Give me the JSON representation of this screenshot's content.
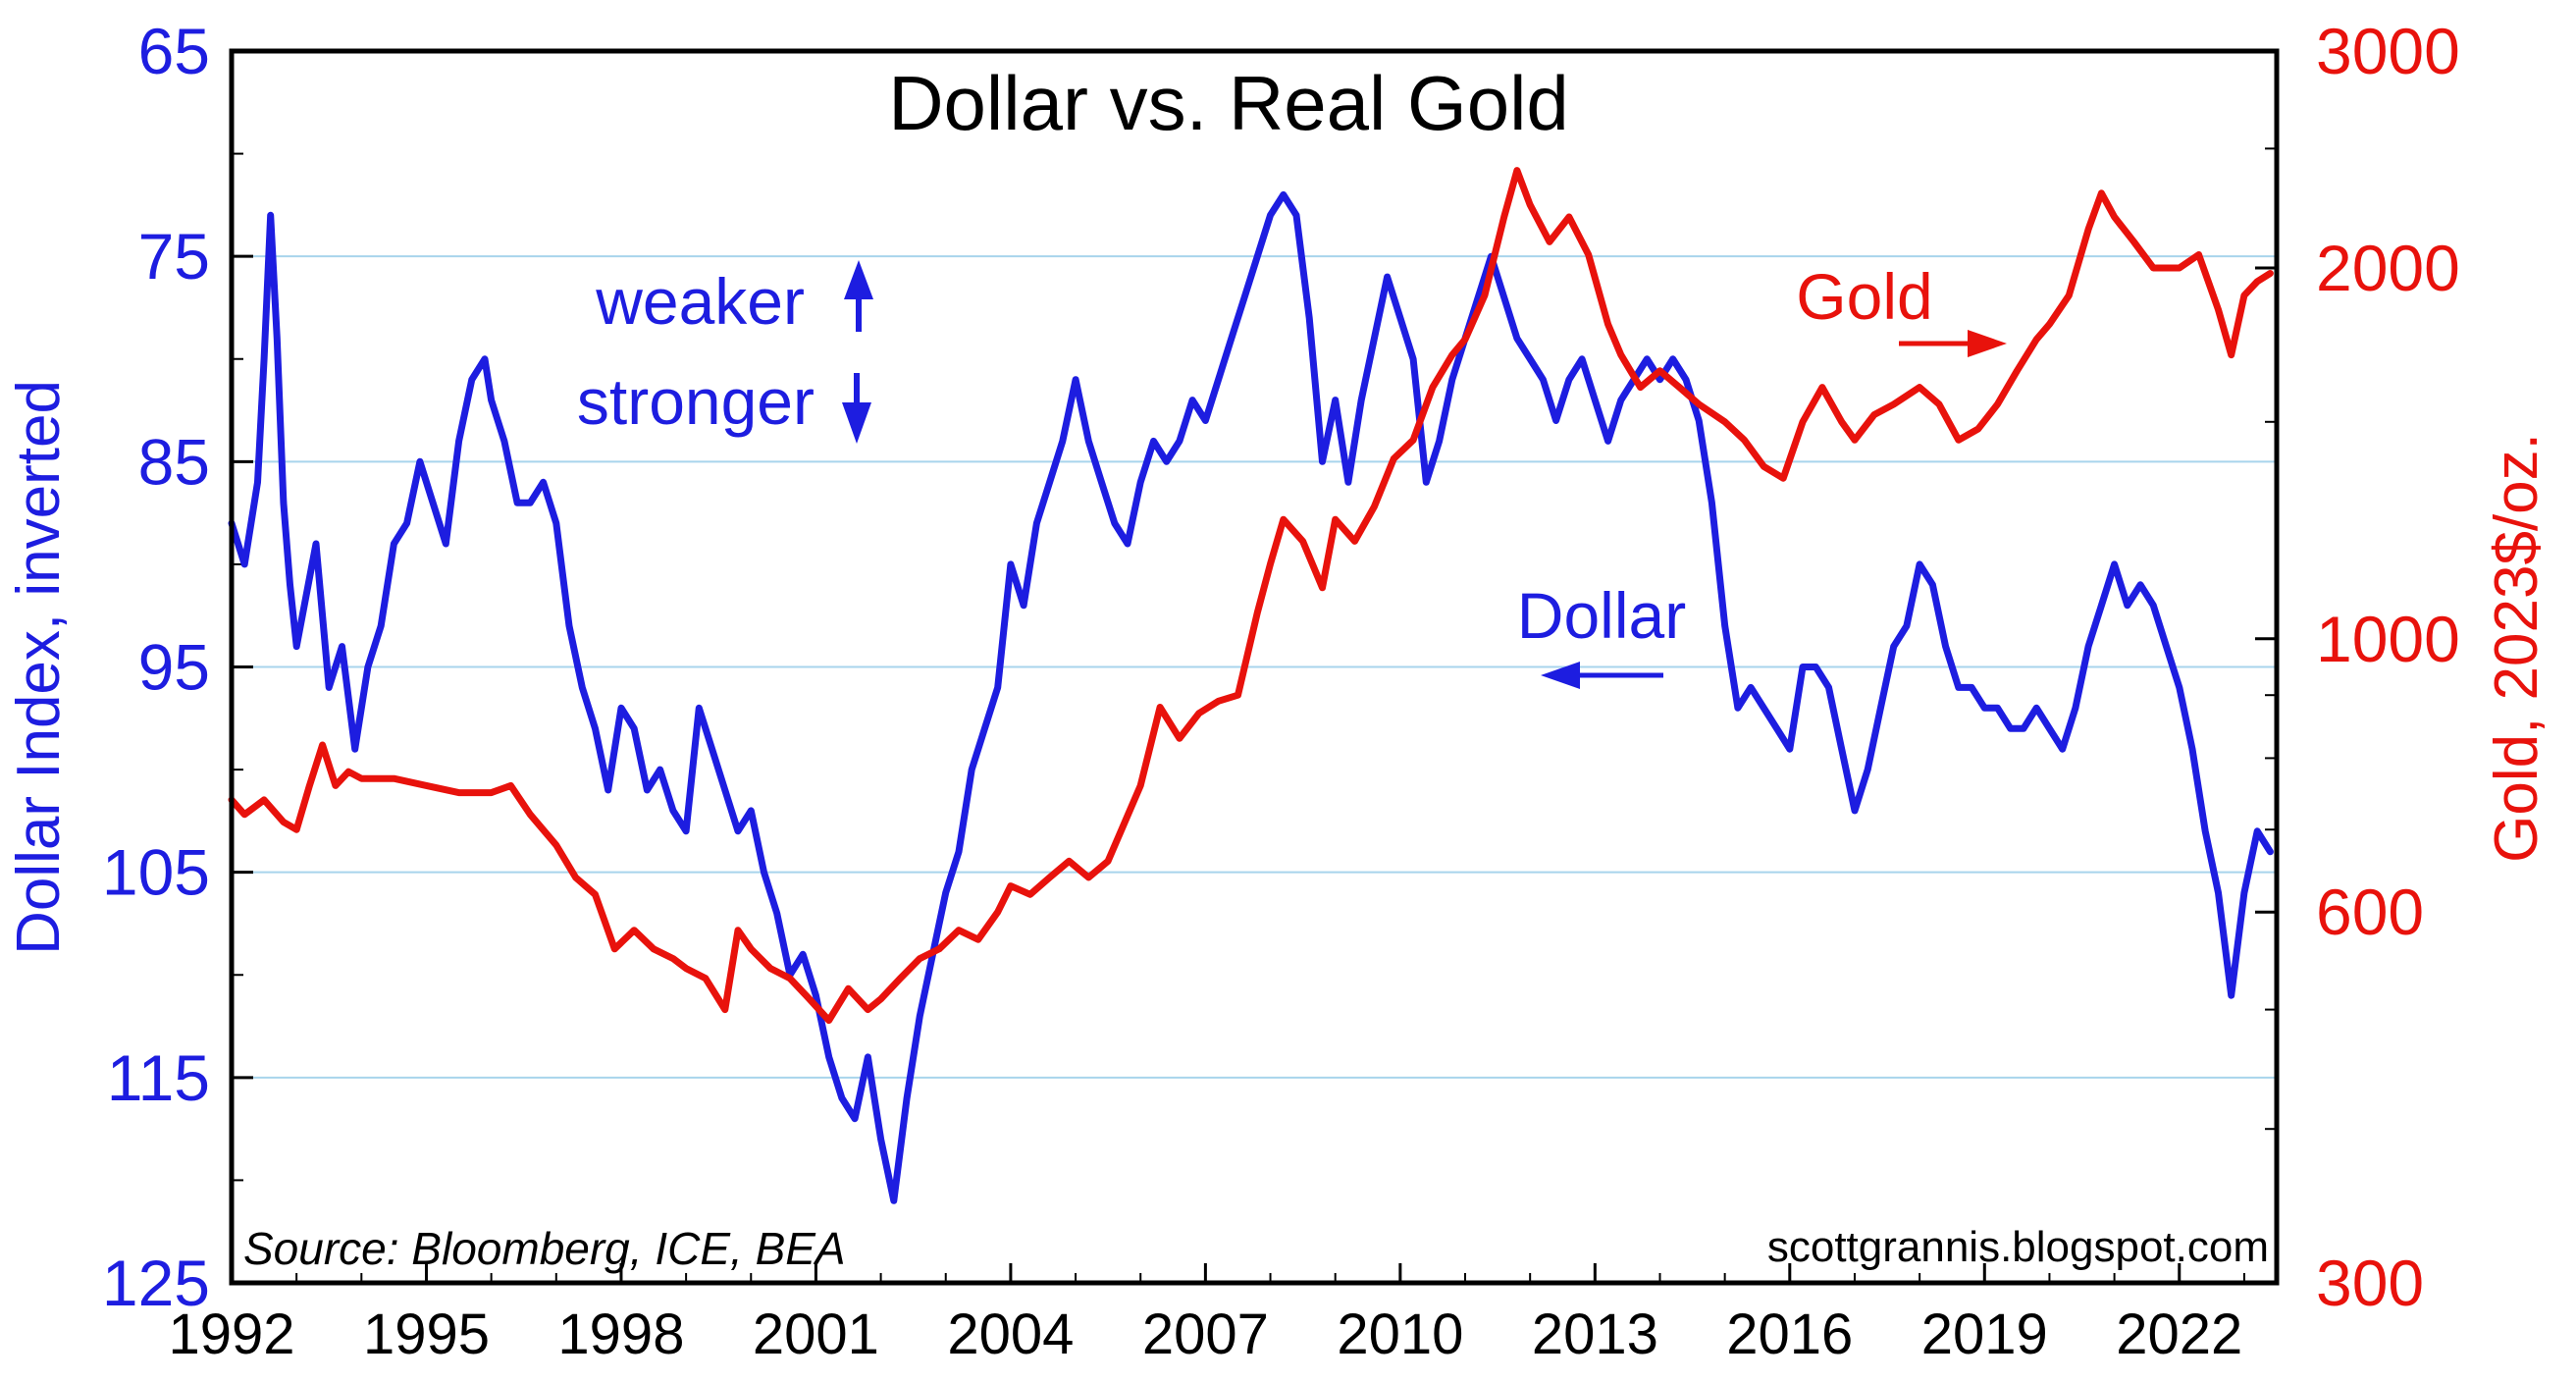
{
  "chart_data": {
    "type": "line",
    "title": "Dollar vs. Real Gold",
    "x_axis": {
      "range": [
        1992,
        2023.5
      ],
      "tick_labels": [
        "1992",
        "1995",
        "1998",
        "2001",
        "2004",
        "2007",
        "2010",
        "2013",
        "2016",
        "2019",
        "2022"
      ]
    },
    "left_axis": {
      "label": "Dollar Index, inverted",
      "inverted": true,
      "range": [
        65,
        125
      ],
      "tick_labels": [
        "65",
        "75",
        "85",
        "95",
        "105",
        "115",
        "125"
      ],
      "color": "#1d1de0"
    },
    "right_axis": {
      "label": "Gold, 2023$/oz.",
      "scale": "log",
      "range": [
        300,
        3000
      ],
      "tick_labels": [
        "3000",
        "2000",
        "1000",
        "600",
        "300"
      ],
      "color": "#e8120c"
    },
    "grid": "horizontal",
    "annotations": {
      "weaker": "weaker",
      "stronger": "stronger",
      "dollar": "Dollar",
      "gold": "Gold"
    },
    "source": "Source: Bloomberg, ICE, BEA",
    "credit": "scottgrannis.blogspot.com",
    "series": [
      {
        "name": "Dollar",
        "axis": "left",
        "color": "#1d1de0",
        "points": [
          [
            1992.0,
            88
          ],
          [
            1992.2,
            90
          ],
          [
            1992.4,
            86
          ],
          [
            1992.5,
            80
          ],
          [
            1992.6,
            73
          ],
          [
            1992.7,
            79
          ],
          [
            1992.8,
            87
          ],
          [
            1992.9,
            91
          ],
          [
            1993.0,
            94
          ],
          [
            1993.3,
            89
          ],
          [
            1993.5,
            96
          ],
          [
            1993.7,
            94
          ],
          [
            1993.9,
            99
          ],
          [
            1994.1,
            95
          ],
          [
            1994.3,
            93
          ],
          [
            1994.5,
            89
          ],
          [
            1994.7,
            88
          ],
          [
            1994.9,
            85
          ],
          [
            1995.1,
            87
          ],
          [
            1995.3,
            89
          ],
          [
            1995.5,
            84
          ],
          [
            1995.7,
            81
          ],
          [
            1995.9,
            80
          ],
          [
            1996.0,
            82
          ],
          [
            1996.2,
            84
          ],
          [
            1996.4,
            87
          ],
          [
            1996.6,
            87
          ],
          [
            1996.8,
            86
          ],
          [
            1997.0,
            88
          ],
          [
            1997.2,
            93
          ],
          [
            1997.4,
            96
          ],
          [
            1997.6,
            98
          ],
          [
            1997.8,
            101
          ],
          [
            1998.0,
            97
          ],
          [
            1998.2,
            98
          ],
          [
            1998.4,
            101
          ],
          [
            1998.6,
            100
          ],
          [
            1998.8,
            102
          ],
          [
            1999.0,
            103
          ],
          [
            1999.2,
            97
          ],
          [
            1999.4,
            99
          ],
          [
            1999.6,
            101
          ],
          [
            1999.8,
            103
          ],
          [
            2000.0,
            102
          ],
          [
            2000.2,
            105
          ],
          [
            2000.4,
            107
          ],
          [
            2000.6,
            110
          ],
          [
            2000.8,
            109
          ],
          [
            2001.0,
            111
          ],
          [
            2001.2,
            114
          ],
          [
            2001.4,
            116
          ],
          [
            2001.6,
            117
          ],
          [
            2001.8,
            114
          ],
          [
            2002.0,
            118
          ],
          [
            2002.2,
            121
          ],
          [
            2002.4,
            116
          ],
          [
            2002.6,
            112
          ],
          [
            2002.8,
            109
          ],
          [
            2003.0,
            106
          ],
          [
            2003.2,
            104
          ],
          [
            2003.4,
            100
          ],
          [
            2003.6,
            98
          ],
          [
            2003.8,
            96
          ],
          [
            2004.0,
            90
          ],
          [
            2004.2,
            92
          ],
          [
            2004.4,
            88
          ],
          [
            2004.6,
            86
          ],
          [
            2004.8,
            84
          ],
          [
            2005.0,
            81
          ],
          [
            2005.2,
            84
          ],
          [
            2005.4,
            86
          ],
          [
            2005.6,
            88
          ],
          [
            2005.8,
            89
          ],
          [
            2006.0,
            86
          ],
          [
            2006.2,
            84
          ],
          [
            2006.4,
            85
          ],
          [
            2006.6,
            84
          ],
          [
            2006.8,
            82
          ],
          [
            2007.0,
            83
          ],
          [
            2007.2,
            81
          ],
          [
            2007.4,
            79
          ],
          [
            2007.6,
            77
          ],
          [
            2007.8,
            75
          ],
          [
            2008.0,
            73
          ],
          [
            2008.2,
            72
          ],
          [
            2008.4,
            73
          ],
          [
            2008.6,
            78
          ],
          [
            2008.8,
            85
          ],
          [
            2009.0,
            82
          ],
          [
            2009.2,
            86
          ],
          [
            2009.4,
            82
          ],
          [
            2009.6,
            79
          ],
          [
            2009.8,
            76
          ],
          [
            2010.0,
            78
          ],
          [
            2010.2,
            80
          ],
          [
            2010.4,
            86
          ],
          [
            2010.6,
            84
          ],
          [
            2010.8,
            81
          ],
          [
            2011.0,
            79
          ],
          [
            2011.2,
            77
          ],
          [
            2011.4,
            75
          ],
          [
            2011.6,
            77
          ],
          [
            2011.8,
            79
          ],
          [
            2012.0,
            80
          ],
          [
            2012.2,
            81
          ],
          [
            2012.4,
            83
          ],
          [
            2012.6,
            81
          ],
          [
            2012.8,
            80
          ],
          [
            2013.0,
            82
          ],
          [
            2013.2,
            84
          ],
          [
            2013.4,
            82
          ],
          [
            2013.6,
            81
          ],
          [
            2013.8,
            80
          ],
          [
            2014.0,
            81
          ],
          [
            2014.2,
            80
          ],
          [
            2014.4,
            81
          ],
          [
            2014.6,
            83
          ],
          [
            2014.8,
            87
          ],
          [
            2015.0,
            93
          ],
          [
            2015.2,
            97
          ],
          [
            2015.4,
            96
          ],
          [
            2015.6,
            97
          ],
          [
            2015.8,
            98
          ],
          [
            2016.0,
            99
          ],
          [
            2016.2,
            95
          ],
          [
            2016.4,
            95
          ],
          [
            2016.6,
            96
          ],
          [
            2016.8,
            99
          ],
          [
            2017.0,
            102
          ],
          [
            2017.2,
            100
          ],
          [
            2017.4,
            97
          ],
          [
            2017.6,
            94
          ],
          [
            2017.8,
            93
          ],
          [
            2018.0,
            90
          ],
          [
            2018.2,
            91
          ],
          [
            2018.4,
            94
          ],
          [
            2018.6,
            96
          ],
          [
            2018.8,
            96
          ],
          [
            2019.0,
            97
          ],
          [
            2019.2,
            97
          ],
          [
            2019.4,
            98
          ],
          [
            2019.6,
            98
          ],
          [
            2019.8,
            97
          ],
          [
            2020.0,
            98
          ],
          [
            2020.2,
            99
          ],
          [
            2020.4,
            97
          ],
          [
            2020.6,
            94
          ],
          [
            2020.8,
            92
          ],
          [
            2021.0,
            90
          ],
          [
            2021.2,
            92
          ],
          [
            2021.4,
            91
          ],
          [
            2021.6,
            92
          ],
          [
            2021.8,
            94
          ],
          [
            2022.0,
            96
          ],
          [
            2022.2,
            99
          ],
          [
            2022.4,
            103
          ],
          [
            2022.6,
            106
          ],
          [
            2022.8,
            111
          ],
          [
            2023.0,
            106
          ],
          [
            2023.2,
            103
          ],
          [
            2023.4,
            104
          ]
        ]
      },
      {
        "name": "Gold",
        "axis": "right",
        "color": "#e8120c",
        "points": [
          [
            1992.0,
            740
          ],
          [
            1992.2,
            720
          ],
          [
            1992.5,
            740
          ],
          [
            1992.8,
            710
          ],
          [
            1993.0,
            700
          ],
          [
            1993.2,
            760
          ],
          [
            1993.4,
            820
          ],
          [
            1993.6,
            760
          ],
          [
            1993.8,
            780
          ],
          [
            1994.0,
            770
          ],
          [
            1994.5,
            770
          ],
          [
            1995.0,
            760
          ],
          [
            1995.5,
            750
          ],
          [
            1996.0,
            750
          ],
          [
            1996.3,
            760
          ],
          [
            1996.6,
            720
          ],
          [
            1997.0,
            680
          ],
          [
            1997.3,
            640
          ],
          [
            1997.6,
            620
          ],
          [
            1997.9,
            560
          ],
          [
            1998.2,
            580
          ],
          [
            1998.5,
            560
          ],
          [
            1998.8,
            550
          ],
          [
            1999.0,
            540
          ],
          [
            1999.3,
            530
          ],
          [
            1999.6,
            500
          ],
          [
            1999.8,
            580
          ],
          [
            2000.0,
            560
          ],
          [
            2000.3,
            540
          ],
          [
            2000.6,
            530
          ],
          [
            2000.9,
            510
          ],
          [
            2001.2,
            490
          ],
          [
            2001.5,
            520
          ],
          [
            2001.8,
            500
          ],
          [
            2002.0,
            510
          ],
          [
            2002.3,
            530
          ],
          [
            2002.6,
            550
          ],
          [
            2002.9,
            560
          ],
          [
            2003.2,
            580
          ],
          [
            2003.5,
            570
          ],
          [
            2003.8,
            600
          ],
          [
            2004.0,
            630
          ],
          [
            2004.3,
            620
          ],
          [
            2004.6,
            640
          ],
          [
            2004.9,
            660
          ],
          [
            2005.2,
            640
          ],
          [
            2005.5,
            660
          ],
          [
            2006.0,
            760
          ],
          [
            2006.3,
            880
          ],
          [
            2006.6,
            830
          ],
          [
            2006.9,
            870
          ],
          [
            2007.2,
            890
          ],
          [
            2007.5,
            900
          ],
          [
            2007.8,
            1050
          ],
          [
            2008.0,
            1150
          ],
          [
            2008.2,
            1250
          ],
          [
            2008.5,
            1200
          ],
          [
            2008.8,
            1100
          ],
          [
            2009.0,
            1250
          ],
          [
            2009.3,
            1200
          ],
          [
            2009.6,
            1280
          ],
          [
            2009.9,
            1400
          ],
          [
            2010.2,
            1450
          ],
          [
            2010.5,
            1600
          ],
          [
            2010.8,
            1700
          ],
          [
            2011.0,
            1750
          ],
          [
            2011.3,
            1900
          ],
          [
            2011.6,
            2200
          ],
          [
            2011.8,
            2400
          ],
          [
            2012.0,
            2250
          ],
          [
            2012.3,
            2100
          ],
          [
            2012.6,
            2200
          ],
          [
            2012.9,
            2050
          ],
          [
            2013.2,
            1800
          ],
          [
            2013.4,
            1700
          ],
          [
            2013.7,
            1600
          ],
          [
            2014.0,
            1650
          ],
          [
            2014.3,
            1600
          ],
          [
            2014.6,
            1550
          ],
          [
            2015.0,
            1500
          ],
          [
            2015.3,
            1450
          ],
          [
            2015.6,
            1380
          ],
          [
            2015.9,
            1350
          ],
          [
            2016.2,
            1500
          ],
          [
            2016.5,
            1600
          ],
          [
            2016.8,
            1500
          ],
          [
            2017.0,
            1450
          ],
          [
            2017.3,
            1520
          ],
          [
            2017.6,
            1550
          ],
          [
            2018.0,
            1600
          ],
          [
            2018.3,
            1550
          ],
          [
            2018.6,
            1450
          ],
          [
            2018.9,
            1480
          ],
          [
            2019.2,
            1550
          ],
          [
            2019.5,
            1650
          ],
          [
            2019.8,
            1750
          ],
          [
            2020.0,
            1800
          ],
          [
            2020.3,
            1900
          ],
          [
            2020.6,
            2150
          ],
          [
            2020.8,
            2300
          ],
          [
            2021.0,
            2200
          ],
          [
            2021.3,
            2100
          ],
          [
            2021.6,
            2000
          ],
          [
            2022.0,
            2000
          ],
          [
            2022.3,
            2050
          ],
          [
            2022.6,
            1850
          ],
          [
            2022.8,
            1700
          ],
          [
            2023.0,
            1900
          ],
          [
            2023.2,
            1950
          ],
          [
            2023.4,
            1980
          ]
        ]
      }
    ]
  }
}
